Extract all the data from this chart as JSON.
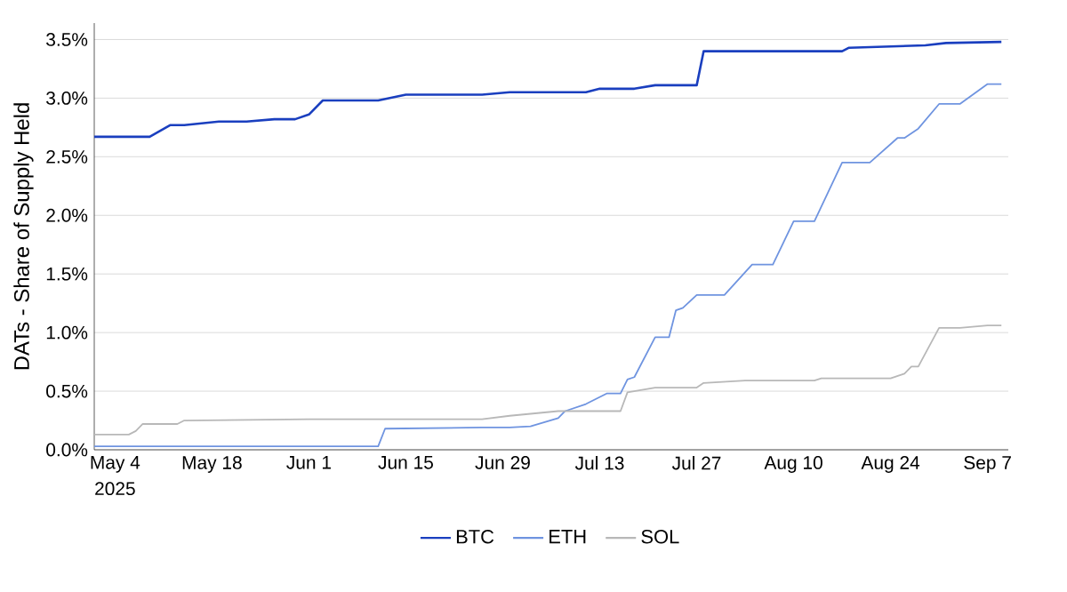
{
  "chart_data": {
    "type": "line",
    "ylabel": "DATs - Share of Supply Held",
    "xlim": [
      "2025-05-01",
      "2025-09-10"
    ],
    "ylim": [
      0,
      3.64
    ],
    "xticks": [
      {
        "value": "2025-05-04",
        "label": "May 4"
      },
      {
        "value": "2025-05-18",
        "label": "May 18"
      },
      {
        "value": "2025-06-01",
        "label": "Jun 1"
      },
      {
        "value": "2025-06-15",
        "label": "Jun 15"
      },
      {
        "value": "2025-06-29",
        "label": "Jun 29"
      },
      {
        "value": "2025-07-13",
        "label": "Jul 13"
      },
      {
        "value": "2025-07-27",
        "label": "Jul 27"
      },
      {
        "value": "2025-08-10",
        "label": "Aug 10"
      },
      {
        "value": "2025-08-24",
        "label": "Aug 24"
      },
      {
        "value": "2025-09-07",
        "label": "Sep 7"
      }
    ],
    "yticks": [
      {
        "value": 0,
        "label": "0.0%"
      },
      {
        "value": 0.5,
        "label": "0.5%"
      },
      {
        "value": 1,
        "label": "1.0%"
      },
      {
        "value": 1.5,
        "label": "1.5%"
      },
      {
        "value": 2,
        "label": "2.0%"
      },
      {
        "value": 2.5,
        "label": "2.5%"
      },
      {
        "value": 3,
        "label": "3.0%"
      },
      {
        "value": 3.5,
        "label": "3.5%"
      }
    ],
    "annotations": [
      "2025"
    ],
    "grid": "y",
    "legend": "bottom",
    "series": [
      {
        "name": "BTC",
        "color": "#1a3fbf",
        "x": [
          "2025-05-01",
          "2025-05-09",
          "2025-05-12",
          "2025-05-14",
          "2025-05-19",
          "2025-05-23",
          "2025-05-27",
          "2025-05-30",
          "2025-06-01",
          "2025-06-03",
          "2025-06-11",
          "2025-06-15",
          "2025-06-26",
          "2025-06-30",
          "2025-07-11",
          "2025-07-13",
          "2025-07-18",
          "2025-07-21",
          "2025-07-27",
          "2025-07-28",
          "2025-08-17",
          "2025-08-18",
          "2025-08-29",
          "2025-09-01",
          "2025-09-09"
        ],
        "values": [
          2.67,
          2.67,
          2.77,
          2.77,
          2.8,
          2.8,
          2.82,
          2.82,
          2.86,
          2.98,
          2.98,
          3.03,
          3.03,
          3.05,
          3.05,
          3.08,
          3.08,
          3.11,
          3.11,
          3.4,
          3.4,
          3.43,
          3.45,
          3.47,
          3.48
        ]
      },
      {
        "name": "ETH",
        "color": "#6f94e0",
        "x": [
          "2025-05-01",
          "2025-06-11",
          "2025-06-12",
          "2025-06-26",
          "2025-06-30",
          "2025-07-03",
          "2025-07-07",
          "2025-07-08",
          "2025-07-11",
          "2025-07-14",
          "2025-07-16",
          "2025-07-17",
          "2025-07-18",
          "2025-07-21",
          "2025-07-23",
          "2025-07-24",
          "2025-07-25",
          "2025-07-27",
          "2025-07-31",
          "2025-08-04",
          "2025-08-07",
          "2025-08-10",
          "2025-08-13",
          "2025-08-17",
          "2025-08-21",
          "2025-08-25",
          "2025-08-26",
          "2025-08-28",
          "2025-08-31",
          "2025-09-03",
          "2025-09-07",
          "2025-09-09"
        ],
        "values": [
          0.03,
          0.03,
          0.18,
          0.19,
          0.19,
          0.2,
          0.27,
          0.33,
          0.39,
          0.48,
          0.48,
          0.6,
          0.62,
          0.96,
          0.96,
          1.19,
          1.21,
          1.32,
          1.32,
          1.58,
          1.58,
          1.95,
          1.95,
          2.45,
          2.45,
          2.66,
          2.66,
          2.74,
          2.95,
          2.95,
          3.12,
          3.12
        ]
      },
      {
        "name": "SOL",
        "color": "#b8b8b8",
        "x": [
          "2025-05-01",
          "2025-05-06",
          "2025-05-07",
          "2025-05-08",
          "2025-05-13",
          "2025-05-14",
          "2025-06-01",
          "2025-06-26",
          "2025-06-30",
          "2025-07-07",
          "2025-07-16",
          "2025-07-17",
          "2025-07-21",
          "2025-07-27",
          "2025-07-28",
          "2025-08-03",
          "2025-08-13",
          "2025-08-14",
          "2025-08-24",
          "2025-08-26",
          "2025-08-27",
          "2025-08-28",
          "2025-08-31",
          "2025-09-03",
          "2025-09-07",
          "2025-09-09"
        ],
        "values": [
          0.13,
          0.13,
          0.16,
          0.22,
          0.22,
          0.25,
          0.26,
          0.26,
          0.29,
          0.33,
          0.33,
          0.49,
          0.53,
          0.53,
          0.57,
          0.59,
          0.59,
          0.61,
          0.61,
          0.65,
          0.71,
          0.71,
          1.04,
          1.04,
          1.06,
          1.06
        ]
      }
    ]
  }
}
